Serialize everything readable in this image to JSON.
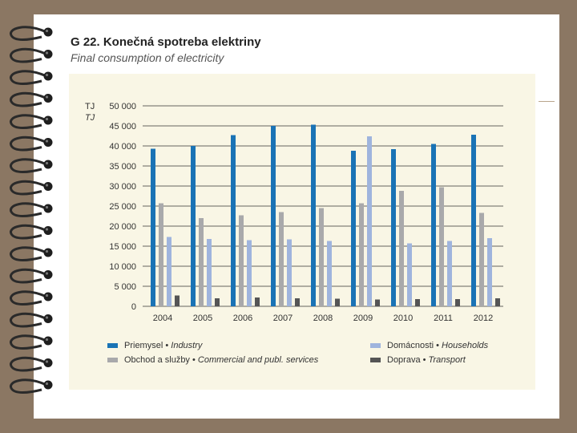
{
  "header": {
    "title": "G 22.  Konečná spotreba elektriny",
    "subtitle": "Final consumption of electricity"
  },
  "chart_data": {
    "type": "bar",
    "unit_labels": [
      "TJ",
      "TJ"
    ],
    "categories": [
      "2004",
      "2005",
      "2006",
      "2007",
      "2008",
      "2009",
      "2010",
      "2011",
      "2012"
    ],
    "ylim": [
      0,
      50000
    ],
    "yticks": [
      "50 000",
      "45 000",
      "40 000",
      "35 000",
      "30 000",
      "25 000",
      "20 000",
      "15 000",
      "10 000",
      "5 000",
      "0"
    ],
    "grid": true,
    "legend_position": "bottom",
    "series": [
      {
        "name": "Priemysel",
        "name_en": "Industry",
        "color": "#1a73b5",
        "values": [
          39300,
          40000,
          42700,
          45000,
          45300,
          38800,
          39200,
          40500,
          42800
        ]
      },
      {
        "name": "Obchod a služby",
        "name_en": "Commercial and publ. services",
        "color": "#a9a9ab",
        "values": [
          25700,
          22000,
          22700,
          23500,
          24500,
          25700,
          28800,
          29700,
          23300
        ]
      },
      {
        "name": "Domácnosti",
        "name_en": "Households",
        "color": "#9fb4dd",
        "values": [
          17300,
          16800,
          16500,
          16700,
          16300,
          42400,
          15700,
          16300,
          17000
        ]
      },
      {
        "name": "Doprava",
        "name_en": "Transport",
        "color": "#555555",
        "values": [
          2700,
          2000,
          2200,
          2000,
          1900,
          1700,
          1800,
          1800,
          2000
        ]
      }
    ]
  }
}
